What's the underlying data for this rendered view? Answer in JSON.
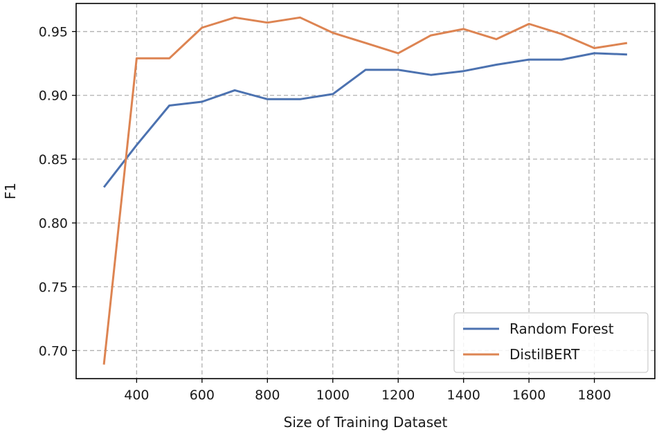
{
  "chart_data": {
    "type": "line",
    "title": "",
    "xlabel": "Size of Training Dataset",
    "ylabel": "F1",
    "xlim": [
      215,
      1985
    ],
    "ylim": [
      0.678,
      0.972
    ],
    "xticks": [
      400,
      600,
      800,
      1000,
      1200,
      1400,
      1600,
      1800
    ],
    "yticks": [
      0.7,
      0.75,
      0.8,
      0.85,
      0.9,
      0.95
    ],
    "xtick_labels": [
      "400",
      "600",
      "800",
      "1000",
      "1200",
      "1400",
      "1600",
      "1800"
    ],
    "ytick_labels": [
      "0.70",
      "0.75",
      "0.80",
      "0.85",
      "0.90",
      "0.95"
    ],
    "grid": true,
    "legend_position": "lower-right",
    "x": [
      300,
      400,
      500,
      600,
      700,
      800,
      900,
      1000,
      1100,
      1200,
      1300,
      1400,
      1500,
      1600,
      1700,
      1800,
      1900
    ],
    "series": [
      {
        "name": "Random Forest",
        "color": "#4c72b0",
        "values": [
          0.828,
          0.861,
          0.892,
          0.895,
          0.904,
          0.897,
          0.897,
          0.901,
          0.92,
          0.92,
          0.916,
          0.919,
          0.924,
          0.928,
          0.928,
          0.933,
          0.932
        ]
      },
      {
        "name": "DistilBERT",
        "color": "#dd8452",
        "values": [
          0.689,
          0.929,
          0.929,
          0.953,
          0.961,
          0.957,
          0.961,
          0.949,
          0.941,
          0.933,
          0.947,
          0.952,
          0.944,
          0.956,
          0.948,
          0.937,
          0.941
        ]
      }
    ]
  }
}
